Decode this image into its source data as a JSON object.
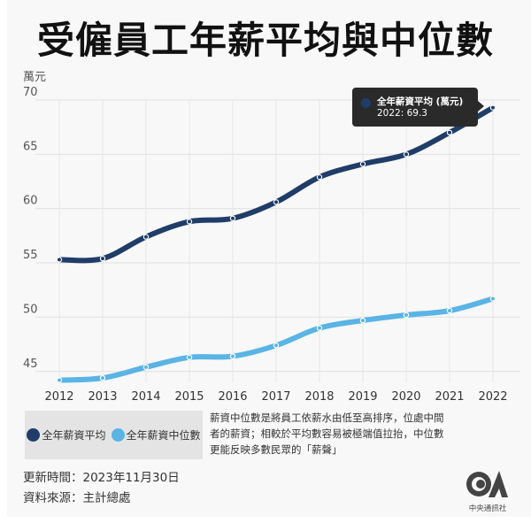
{
  "title": "受僱員工年薪平均與中位數",
  "chart_data": {
    "type": "line",
    "title": "受僱員工年薪平均與中位數",
    "ylabel": "萬元",
    "xlabel": "",
    "x": [
      "2012",
      "2013",
      "2014",
      "2015",
      "2016",
      "2017",
      "2018",
      "2019",
      "2020",
      "2021",
      "2022"
    ],
    "yticks": [
      45,
      50,
      55,
      60,
      65,
      70
    ],
    "ylim": [
      44,
      70
    ],
    "grid": true,
    "legend_position": "bottom-left",
    "series": [
      {
        "name": "全年薪資平均",
        "color": "#1f3d68",
        "values": [
          55.3,
          55.4,
          57.4,
          58.8,
          59.1,
          60.6,
          62.9,
          64.1,
          65.0,
          67.0,
          69.3
        ]
      },
      {
        "name": "全年薪資中位數",
        "color": "#5ab4e5",
        "values": [
          44.2,
          44.4,
          45.4,
          46.3,
          46.4,
          47.4,
          49.0,
          49.7,
          50.2,
          50.6,
          51.7
        ]
      }
    ],
    "tooltip": {
      "series": "全年薪資平均 (萬元)",
      "text": "2022: 69.3"
    }
  },
  "note": "薪資中位數是將員工依薪水由低至高排序，位處中間者的薪資；相較於平均數容易被極端值拉抬，中位數更能反映多數民眾的「薪聲」",
  "footer": {
    "updated": "更新時間：2023年11月30日",
    "source": "資料來源：主計總處"
  },
  "logo": {
    "text": "CNA",
    "caption": "中央通訊社"
  }
}
